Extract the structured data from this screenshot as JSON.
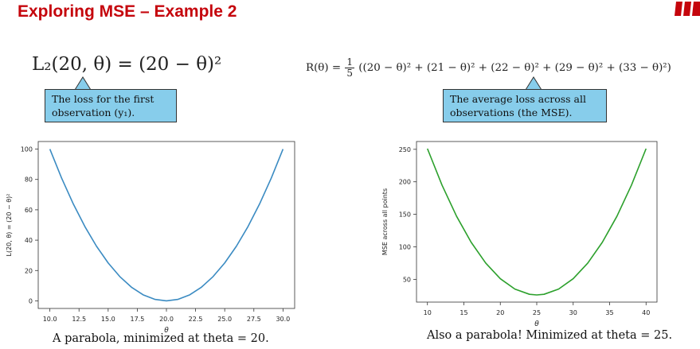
{
  "slide": {
    "title": "Exploring MSE – Example 2",
    "formula_left": "L₂(20, θ) = (20 − θ)²",
    "formula_right_prefix": "R(θ) =",
    "formula_right_frac_num": "1",
    "formula_right_frac_den": "5",
    "formula_right_body": "((20 − θ)² + (21 − θ)² + (22 − θ)² + (29 − θ)² + (33 − θ)²)",
    "callout_left_line1": "The loss for the first",
    "callout_left_line2": "observation (y₁).",
    "callout_right_line1": "The average loss across all",
    "callout_right_line2": "observations (the MSE).",
    "caption_left": "A parabola, minimized at theta = 20.",
    "caption_right": "Also a parabola! Minimized at theta = 25.",
    "logo_color": "#c5050c"
  },
  "chart_data": [
    {
      "type": "line",
      "xlabel": "θ",
      "ylabel": "L(20, θ) = (20 − θ)²",
      "xlim": [
        9.0,
        31.0
      ],
      "ylim": [
        -5,
        105
      ],
      "xticks": [
        10.0,
        12.5,
        15.0,
        17.5,
        20.0,
        22.5,
        25.0,
        27.5,
        30.0
      ],
      "xtick_labels": [
        "10.0",
        "12.5",
        "15.0",
        "17.5",
        "20.0",
        "22.5",
        "25.0",
        "27.5",
        "30.0"
      ],
      "yticks": [
        0,
        20,
        40,
        60,
        80,
        100
      ],
      "ytick_labels": [
        "0",
        "20",
        "40",
        "60",
        "80",
        "100"
      ],
      "series": [
        {
          "color": "#3b8bc2",
          "x": [
            10,
            11,
            12,
            13,
            14,
            15,
            16,
            17,
            18,
            19,
            20,
            21,
            22,
            23,
            24,
            25,
            26,
            27,
            28,
            29,
            30
          ],
          "y": [
            100,
            81,
            64,
            49,
            36,
            25,
            16,
            9,
            4,
            1,
            0,
            1,
            4,
            9,
            16,
            25,
            36,
            49,
            64,
            81,
            100
          ]
        }
      ]
    },
    {
      "type": "line",
      "xlabel": "θ",
      "ylabel": "MSE across all points",
      "xlim": [
        8.5,
        41.5
      ],
      "ylim": [
        15,
        262
      ],
      "xticks": [
        10,
        15,
        20,
        25,
        30,
        35,
        40
      ],
      "xtick_labels": [
        "10",
        "15",
        "20",
        "25",
        "30",
        "35",
        "40"
      ],
      "yticks": [
        50,
        100,
        150,
        200,
        250
      ],
      "ytick_labels": [
        "50",
        "100",
        "150",
        "200",
        "250"
      ],
      "series": [
        {
          "color": "#2ca02c",
          "x": [
            10,
            12,
            14,
            16,
            18,
            20,
            22,
            24,
            25,
            26,
            28,
            30,
            32,
            34,
            36,
            38,
            40
          ],
          "y": [
            251,
            195,
            147,
            107,
            75,
            51,
            35,
            27,
            26,
            27,
            35,
            51,
            75,
            107,
            147,
            195,
            251
          ]
        }
      ]
    }
  ]
}
